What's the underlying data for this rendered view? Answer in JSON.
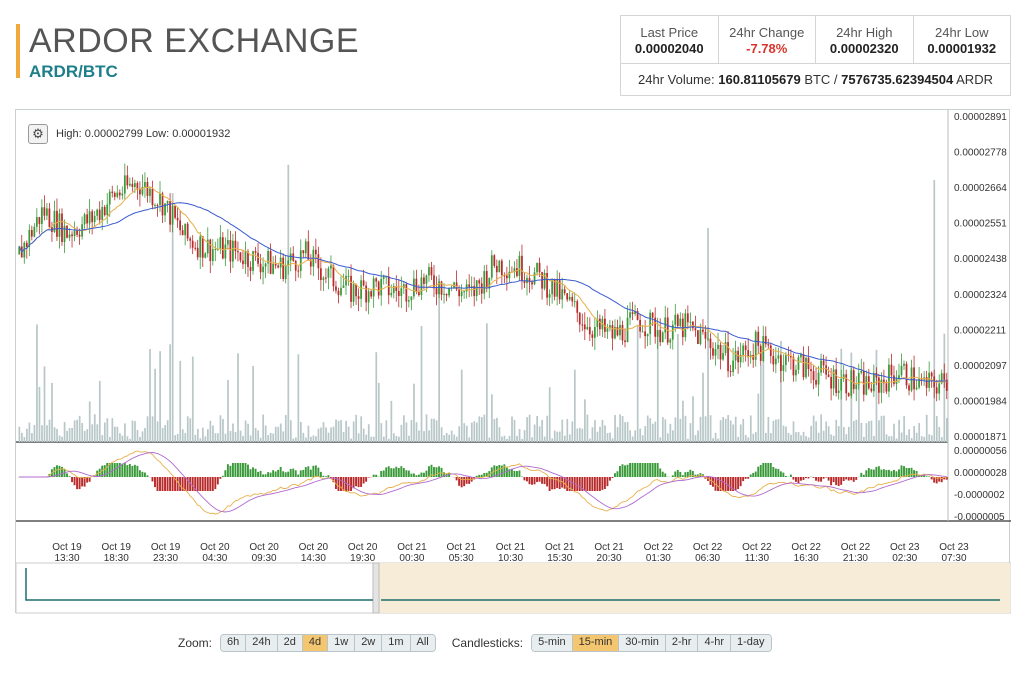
{
  "header": {
    "title": "ARDOR EXCHANGE",
    "pair": "ARDR/BTC"
  },
  "stats": {
    "items": [
      {
        "label": "Last Price",
        "value": "0.00002040"
      },
      {
        "label": "24hr Change",
        "value": "-7.78%"
      },
      {
        "label": "24hr High",
        "value": "0.00002320"
      },
      {
        "label": "24hr Low",
        "value": "0.00001932"
      }
    ],
    "volume_label": "24hr Volume:",
    "volume_btc": "160.81105679",
    "volume_btc_unit": "BTC /",
    "volume_ardr": "7576735.62394504",
    "volume_ardr_unit": "ARDR",
    "negative_color": "#d9342b"
  },
  "chart": {
    "settings_icon": "gear-icon",
    "high_low_text": "High: 0.00002799  Low: 0.00001932",
    "colors": {
      "up": "#3a9a3a",
      "down": "#b92b2b",
      "ma_fast": "#e8b04a",
      "ma_slow": "#3a5bd0",
      "volume": "#b8c7c7",
      "navigator_fill": "#f7ecd7"
    }
  },
  "chart_data": {
    "type": "candlestick",
    "y_ticks": [
      "0.00002891",
      "0.00002778",
      "0.00002664",
      "0.00002551",
      "0.00002438",
      "0.00002324",
      "0.00002211",
      "0.00002097",
      "0.00001984",
      "0.00001871"
    ],
    "ylim": [
      1.871e-05,
      2.891e-05
    ],
    "oscillator_ticks": [
      "0.00000056",
      "0.00000028",
      "-0.0000002",
      "-0.0000005"
    ],
    "x_ticks": [
      [
        "Oct 19",
        "13:30"
      ],
      [
        "Oct 19",
        "18:30"
      ],
      [
        "Oct 19",
        "23:30"
      ],
      [
        "Oct 20",
        "04:30"
      ],
      [
        "Oct 20",
        "09:30"
      ],
      [
        "Oct 20",
        "14:30"
      ],
      [
        "Oct 20",
        "19:30"
      ],
      [
        "Oct 21",
        "00:30"
      ],
      [
        "Oct 21",
        "05:30"
      ],
      [
        "Oct 21",
        "10:30"
      ],
      [
        "Oct 21",
        "15:30"
      ],
      [
        "Oct 21",
        "20:30"
      ],
      [
        "Oct 22",
        "01:30"
      ],
      [
        "Oct 22",
        "06:30"
      ],
      [
        "Oct 22",
        "11:30"
      ],
      [
        "Oct 22",
        "16:30"
      ],
      [
        "Oct 22",
        "21:30"
      ],
      [
        "Oct 23",
        "02:30"
      ],
      [
        "Oct 23",
        "07:30"
      ]
    ],
    "close_path": [
      2.45e-05,
      2.59e-05,
      2.52e-05,
      2.56e-05,
      2.64e-05,
      2.68e-05,
      2.62e-05,
      2.5e-05,
      2.47e-05,
      2.46e-05,
      2.43e-05,
      2.41e-05,
      2.45e-05,
      2.38e-05,
      2.33e-05,
      2.35e-05,
      2.33e-05,
      2.37e-05,
      2.35e-05,
      2.32e-05,
      2.42e-05,
      2.41e-05,
      2.37e-05,
      2.3e-05,
      2.22e-05,
      2.19e-05,
      2.24e-05,
      2.21e-05,
      2.22e-05,
      2.17e-05,
      2.11e-05,
      2.16e-05,
      2.12e-05,
      2.09e-05,
      2.06e-05,
      2.04e-05,
      2.03e-05,
      2.08e-05,
      2.03e-05,
      2.04e-05
    ]
  },
  "controls": {
    "zoom_label": "Zoom:",
    "zoom": [
      {
        "label": "6h"
      },
      {
        "label": "24h"
      },
      {
        "label": "2d"
      },
      {
        "label": "4d",
        "active": true
      },
      {
        "label": "1w"
      },
      {
        "label": "2w"
      },
      {
        "label": "1m"
      },
      {
        "label": "All"
      }
    ],
    "candle_label": "Candlesticks:",
    "candles": [
      {
        "label": "5-min"
      },
      {
        "label": "15-min",
        "active": true
      },
      {
        "label": "30-min"
      },
      {
        "label": "2-hr"
      },
      {
        "label": "4-hr"
      },
      {
        "label": "1-day"
      }
    ]
  }
}
